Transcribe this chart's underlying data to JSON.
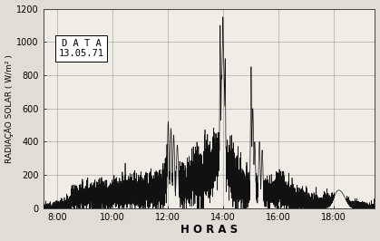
{
  "xlabel": "H O R A S",
  "ylabel": "RADIAÇÃO SOLAR ( W/m² )",
  "annotation_title": "D A T A",
  "annotation_date": "13.05.71",
  "xlim": [
    7.5,
    19.5
  ],
  "ylim": [
    0,
    1200
  ],
  "xticks": [
    8,
    10,
    12,
    14,
    16,
    18
  ],
  "xtick_labels": [
    "8:00",
    "10:00",
    "12:00",
    "14:00",
    "16:00",
    "18:00"
  ],
  "yticks": [
    0,
    200,
    400,
    600,
    800,
    1000,
    1200
  ],
  "grid_color": "#999999",
  "line_color": "#111111",
  "bg_color": "#f0ede6",
  "fig_color": "#e0ddd6"
}
